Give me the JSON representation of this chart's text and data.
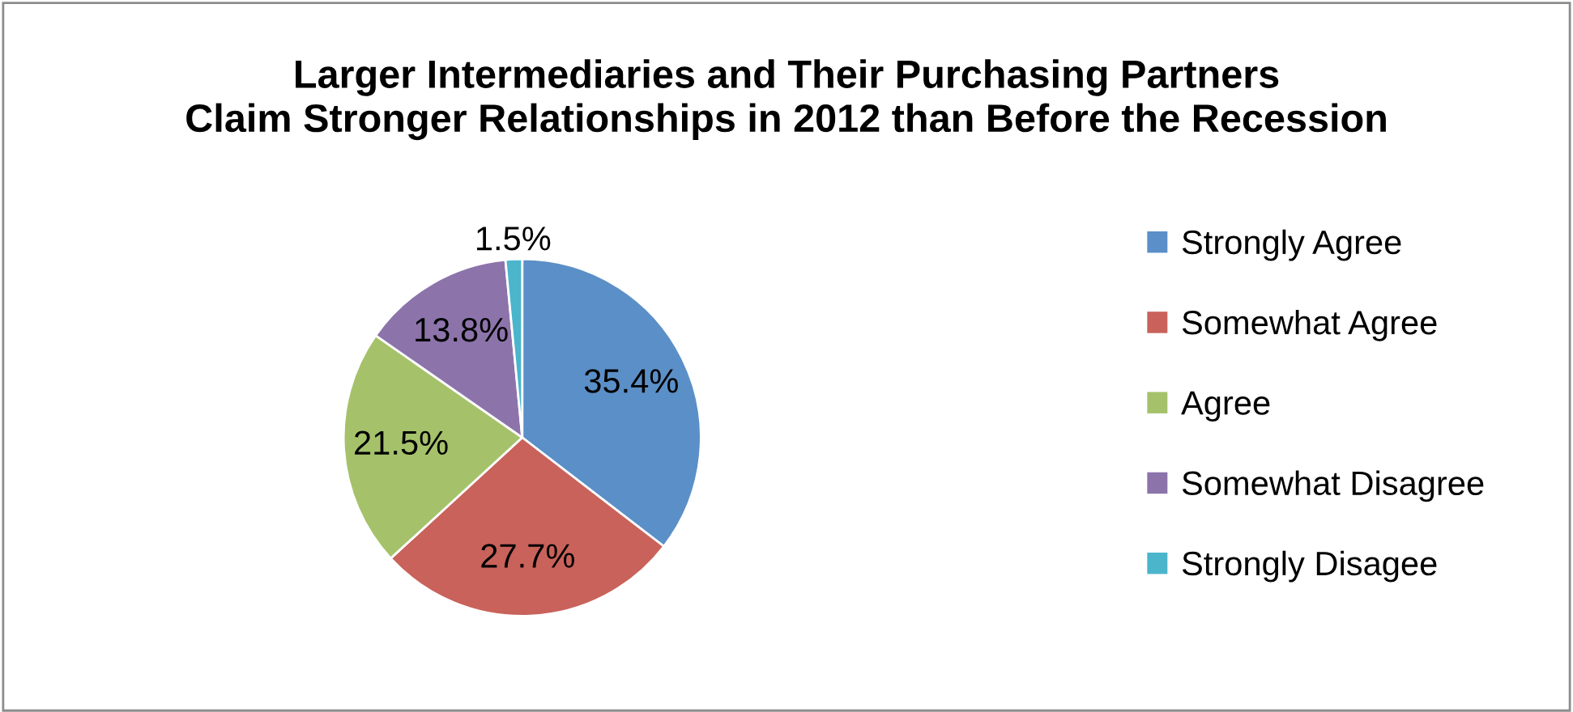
{
  "chart_data": {
    "type": "pie",
    "title": "Larger Intermediaries and Their Purchasing Partners\nClaim Stronger Relationships in 2012 than Before the Recession",
    "categories": [
      "Strongly Agree",
      "Somewhat Agree",
      "Agree",
      "Somewhat Disagree",
      "Strongly Disagee"
    ],
    "values": [
      35.4,
      27.7,
      21.5,
      13.8,
      1.5
    ],
    "value_labels": [
      "35.4%",
      "27.7%",
      "21.5%",
      "13.8%",
      "1.5%"
    ],
    "colors": [
      "#5b8fc7",
      "#c9625a",
      "#a5c26b",
      "#8c74ab",
      "#4bb5cc"
    ],
    "legend": "right"
  }
}
